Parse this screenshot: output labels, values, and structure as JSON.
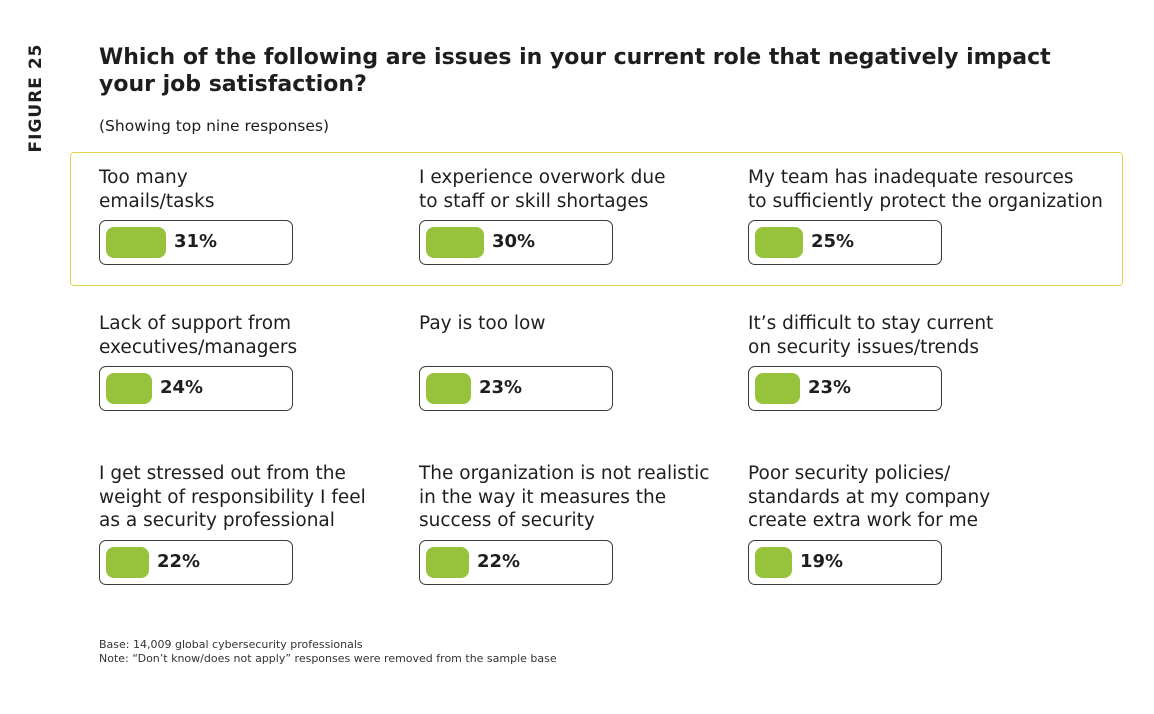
{
  "figure_label": "FIGURE 25",
  "chart_data": {
    "type": "bar",
    "title": "Which of the following are issues in your current role that negatively impact your job satisfaction?",
    "subtitle": "(Showing top nine responses)",
    "unit": "%",
    "accent_color": "#97c23c",
    "highlight_color": "#e4d44a",
    "highlighted_count": 3,
    "categories": [
      "Too many\nemails/tasks",
      "I experience overwork due\nto staff or skill shortages",
      "My team has inadequate resources\nto sufficiently protect the organization",
      "Lack of support from\nexecutives/managers",
      "Pay is too low",
      "It’s difficult to stay current\non security issues/trends",
      "I get stressed out from the\nweight of responsibility I feel\nas a security professional",
      "The organization is not realistic\nin the way it measures the\nsuccess of security",
      "Poor security policies/\nstandards at my company\ncreate extra work for me"
    ],
    "values": [
      31,
      30,
      25,
      24,
      23,
      23,
      22,
      22,
      19
    ],
    "value_labels": [
      "31%",
      "30%",
      "25%",
      "24%",
      "23%",
      "23%",
      "22%",
      "22%",
      "19%"
    ]
  },
  "footnotes": {
    "base": "Base: 14,009 global cybersecurity professionals",
    "note": "Note: “Don’t know/does not apply” responses were removed from the sample base"
  }
}
